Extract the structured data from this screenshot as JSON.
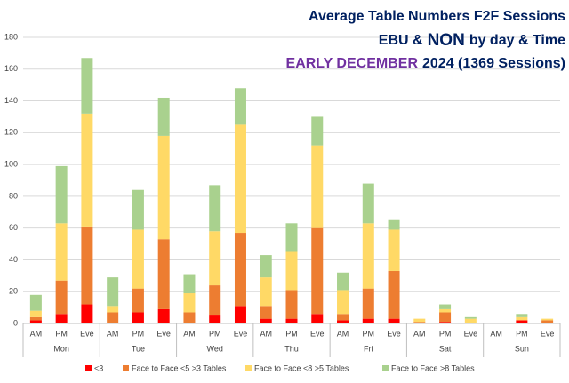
{
  "chart_data": {
    "type": "stacked_bar",
    "title_lines": [
      [
        {
          "text": "Average Table Numbers F2F Sessions",
          "color": "#002060",
          "size": 16
        }
      ],
      [
        {
          "text": "EBU &",
          "color": "#002060",
          "size": 16
        },
        {
          "text": "NON",
          "color": "#002060",
          "size": 19
        },
        {
          "text": "by day & Time",
          "color": "#002060",
          "size": 16
        }
      ],
      [
        {
          "text": "EARLY DECEMBER",
          "color": "#7030a0",
          "size": 16
        },
        {
          "text": "2024 (1369 Sessions)",
          "color": "#002060",
          "size": 16
        }
      ]
    ],
    "categories": [
      "AM",
      "PM",
      "Eve",
      "AM",
      "PM",
      "Eve",
      "AM",
      "PM",
      "Eve",
      "AM",
      "PM",
      "Eve",
      "AM",
      "PM",
      "Eve",
      "AM",
      "PM",
      "Eve",
      "AM",
      "PM",
      "Eve"
    ],
    "groups": [
      "Mon",
      "Tue",
      "Wed",
      "Thu",
      "Fri",
      "Sat",
      "Sun"
    ],
    "series": [
      {
        "name": "<3",
        "color": "#ff0000",
        "values": [
          2,
          6,
          12,
          0,
          7,
          9,
          0,
          5,
          11,
          3,
          3,
          6,
          2,
          3,
          3,
          0,
          1,
          0,
          0,
          2,
          0
        ]
      },
      {
        "name": "Face to Face <5 >3 Tables",
        "color": "#ed7d31",
        "values": [
          2,
          21,
          49,
          7,
          15,
          44,
          7,
          19,
          46,
          8,
          18,
          54,
          4,
          19,
          30,
          1,
          6,
          0,
          0,
          0,
          2
        ]
      },
      {
        "name": "Face to Face <8 >5 Tables",
        "color": "#ffd966",
        "values": [
          4,
          36,
          71,
          4,
          37,
          65,
          12,
          34,
          68,
          18,
          24,
          52,
          15,
          41,
          26,
          2,
          2,
          3,
          0,
          2,
          1
        ]
      },
      {
        "name": "Face to Face >8 Tables",
        "color": "#a9d18e",
        "values": [
          10,
          36,
          35,
          18,
          25,
          24,
          12,
          29,
          23,
          14,
          18,
          18,
          11,
          25,
          6,
          0,
          3,
          1,
          0,
          2,
          0
        ]
      }
    ],
    "ylim": [
      0,
      180
    ],
    "yticks": [
      0,
      20,
      40,
      60,
      80,
      100,
      120,
      140,
      160,
      180
    ],
    "grid": true,
    "legend": "bottom"
  }
}
